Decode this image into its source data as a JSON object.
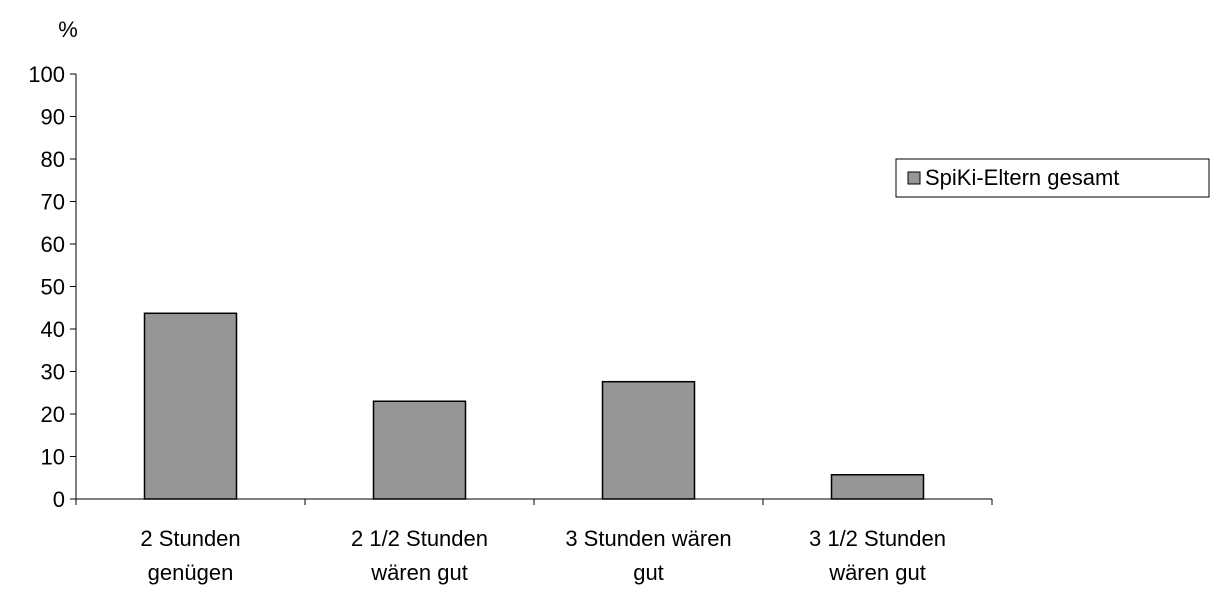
{
  "chart_data": {
    "type": "bar",
    "title": "",
    "xlabel": "",
    "ylabel": "%",
    "ylim": [
      0,
      100
    ],
    "yticks": [
      "0",
      "10",
      "20",
      "30",
      "40",
      "50",
      "60",
      "70",
      "80",
      "90",
      "100"
    ],
    "grid": false,
    "legend_position": "right",
    "categories": [
      [
        "2 Stunden",
        "genügen"
      ],
      [
        "2 1/2 Stunden",
        "wären gut"
      ],
      [
        "3 Stunden wären",
        "gut"
      ],
      [
        "3 1/2 Stunden",
        "wären gut"
      ]
    ],
    "series": [
      {
        "name": "SpiKi-Eltern gesamt",
        "color": "#969696",
        "values": [
          43.7,
          23,
          27.6,
          5.7
        ]
      }
    ]
  }
}
